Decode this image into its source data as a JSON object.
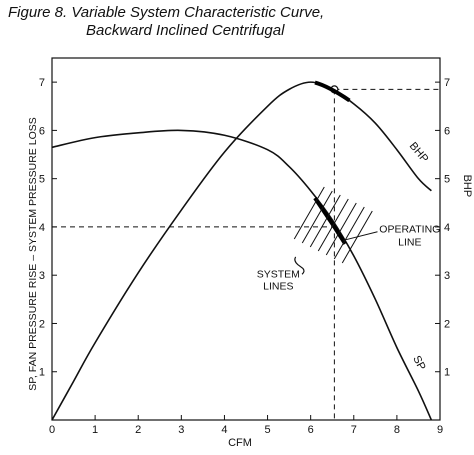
{
  "figure": {
    "title_line1": "Figure 8. Variable System Characteristic Curve,",
    "title_line2": "Backward Inclined Centrifugal"
  },
  "chart_data": {
    "type": "line",
    "xlabel": "CFM",
    "ylabel_left": "SP, FAN PRESSURE RISE – SYSTEM PRESSURE LOSS",
    "ylabel_right": "BHP",
    "xlim": [
      0,
      9
    ],
    "ylim": [
      0,
      7.5
    ],
    "x_ticks": [
      "0",
      "1",
      "2",
      "3",
      "4",
      "5",
      "6",
      "7",
      "8",
      "9"
    ],
    "y_ticks_left": [
      "1",
      "2",
      "3",
      "4",
      "5",
      "6",
      "7"
    ],
    "y_ticks_right": [
      "1",
      "2",
      "3",
      "4",
      "5",
      "6",
      "7"
    ],
    "series": [
      {
        "name": "SP",
        "points": [
          [
            0,
            5.65
          ],
          [
            1,
            5.85
          ],
          [
            2,
            5.95
          ],
          [
            3,
            6.0
          ],
          [
            4,
            5.9
          ],
          [
            5,
            5.6
          ],
          [
            5.5,
            5.25
          ],
          [
            6,
            4.75
          ],
          [
            6.5,
            4.15
          ],
          [
            7,
            3.4
          ],
          [
            7.5,
            2.5
          ],
          [
            8,
            1.5
          ],
          [
            8.5,
            0.6
          ],
          [
            8.8,
            0.0
          ]
        ]
      },
      {
        "name": "BHP",
        "points": [
          [
            0,
            0.0
          ],
          [
            0.5,
            0.8
          ],
          [
            1,
            1.6
          ],
          [
            2,
            3.05
          ],
          [
            3,
            4.35
          ],
          [
            4,
            5.55
          ],
          [
            5,
            6.5
          ],
          [
            5.5,
            6.85
          ],
          [
            6,
            7.0
          ],
          [
            6.5,
            6.85
          ],
          [
            7,
            6.55
          ],
          [
            7.5,
            6.15
          ],
          [
            8,
            5.6
          ],
          [
            8.5,
            5.0
          ],
          [
            8.8,
            4.75
          ]
        ]
      }
    ],
    "operating_point": {
      "cfm": 6.55,
      "sp": 4.0,
      "bhp": 6.85
    },
    "annotations": {
      "system_lines": [
        "SYSTEM",
        "LINES"
      ],
      "operating_line": [
        "OPERATING",
        "LINE"
      ]
    },
    "grid": false
  }
}
